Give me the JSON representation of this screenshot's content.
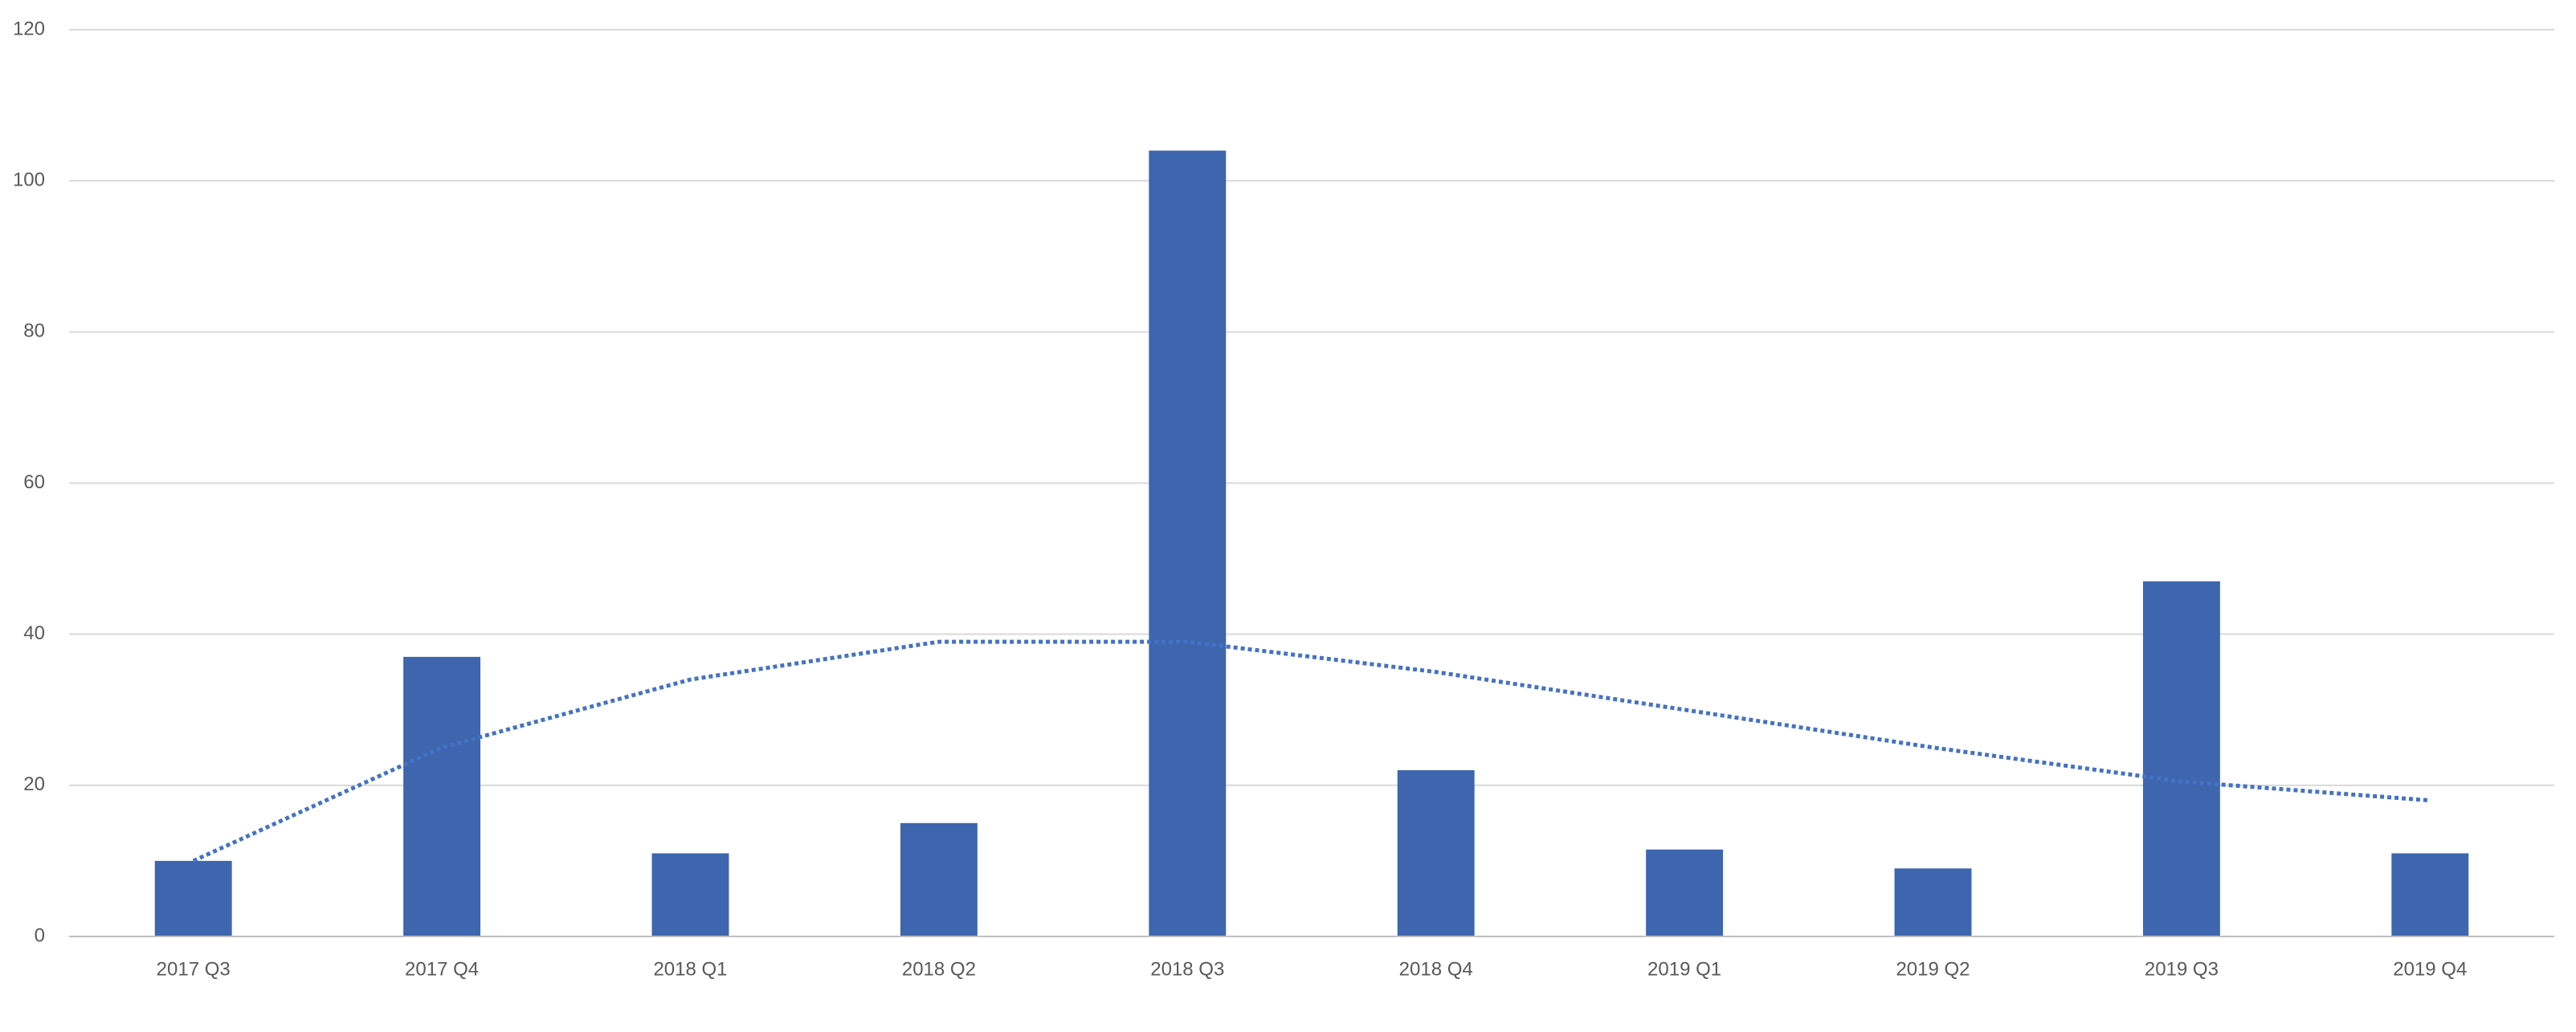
{
  "chart_data": {
    "type": "bar",
    "categories": [
      "2017 Q3",
      "2017 Q4",
      "2018 Q1",
      "2018 Q2",
      "2018 Q3",
      "2018 Q4",
      "2019 Q1",
      "2019 Q2",
      "2019 Q3",
      "2019 Q4"
    ],
    "values": [
      10,
      37,
      11,
      15,
      104,
      22,
      11.5,
      9,
      47,
      11
    ],
    "color": "#3d66ae",
    "trendline": {
      "values": [
        10,
        25,
        34,
        39,
        39,
        35,
        30,
        25,
        20.5,
        18
      ],
      "color": "#4472c4",
      "style": "dotted"
    },
    "ylim": [
      0,
      120
    ],
    "yticks": [
      0,
      20,
      40,
      60,
      80,
      100,
      120
    ],
    "grid": true
  }
}
